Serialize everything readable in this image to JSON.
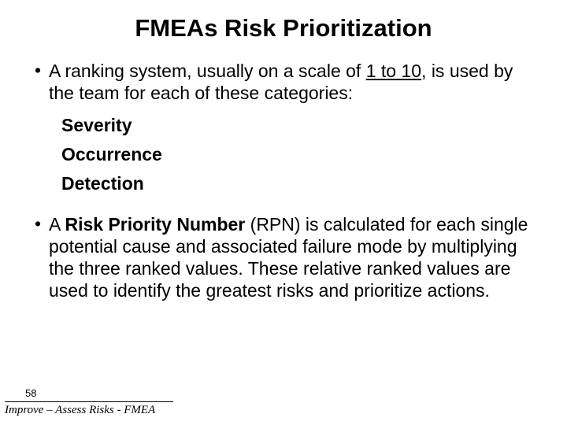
{
  "title": {
    "text": "FMEAs Risk Prioritization",
    "fontsize": 31
  },
  "body_fontsize": 23,
  "bullet1": {
    "pre": "A ranking system, usually on a scale of ",
    "underlined": "1 to 10",
    "post": ", is used by the team for each of these categories:"
  },
  "subs": {
    "s1": "Severity",
    "s2": "Occurrence",
    "s3": "Detection"
  },
  "bullet2": {
    "pre": "A ",
    "bold": "Risk Priority Number",
    "post": " (RPN) is calculated for each single potential cause and associated failure mode by multiplying the three ranked values. These relative ranked values are used to identify the greatest risks and prioritize actions."
  },
  "footer": {
    "page": "58",
    "text": "Improve – Assess Risks - FMEA",
    "fontsize": 15,
    "pagenum_fontsize": 13
  },
  "colors": {
    "text": "#000000",
    "background": "#ffffff"
  }
}
